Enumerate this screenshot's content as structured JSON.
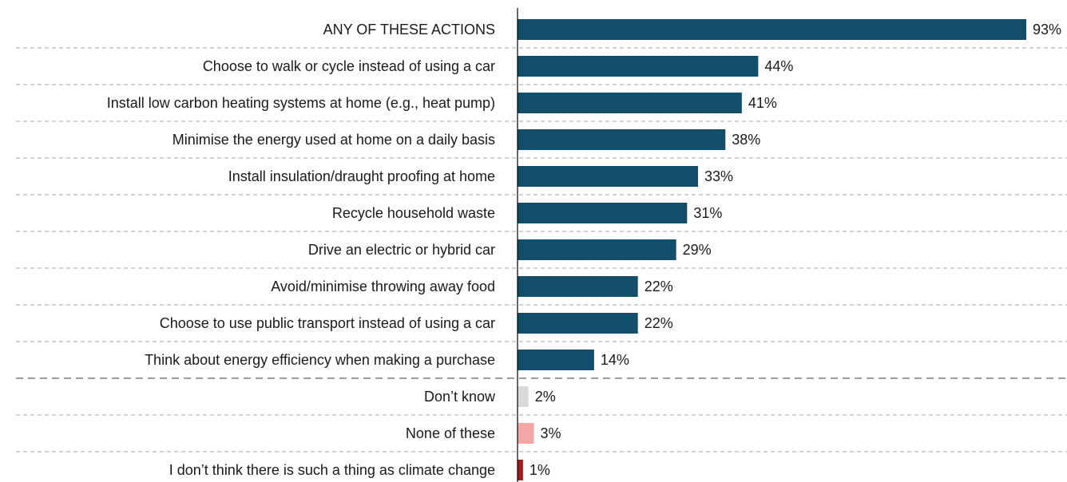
{
  "chart_data": {
    "type": "bar",
    "orientation": "horizontal",
    "categories": [
      "ANY OF THESE ACTIONS",
      "Choose to walk or cycle instead of using a car",
      "Install low carbon heating systems at home (e.g., heat pump)",
      "Minimise the energy used at home on a daily basis",
      "Install insulation/draught proofing at home",
      "Recycle household waste",
      "Drive an electric or hybrid car",
      "Avoid/minimise throwing away food",
      "Choose to use public transport instead of using a car",
      "Think about energy efficiency when making a purchase",
      "Don’t know",
      "None of these",
      "I don’t think there is such a thing as climate change"
    ],
    "values": [
      93,
      44,
      41,
      38,
      33,
      31,
      29,
      22,
      22,
      14,
      2,
      3,
      1
    ],
    "value_labels": [
      "93%",
      "44%",
      "41%",
      "38%",
      "33%",
      "31%",
      "29%",
      "22%",
      "22%",
      "14%",
      "2%",
      "3%",
      "1%"
    ],
    "colors": [
      "#124e6a",
      "#124e6a",
      "#124e6a",
      "#124e6a",
      "#124e6a",
      "#124e6a",
      "#124e6a",
      "#124e6a",
      "#124e6a",
      "#124e6a",
      "#d9d9d9",
      "#f4a5a5",
      "#a61c1c"
    ],
    "xlim": [
      0,
      93
    ],
    "title": "",
    "xlabel": "",
    "ylabel": "",
    "grid": false,
    "legend": false
  }
}
